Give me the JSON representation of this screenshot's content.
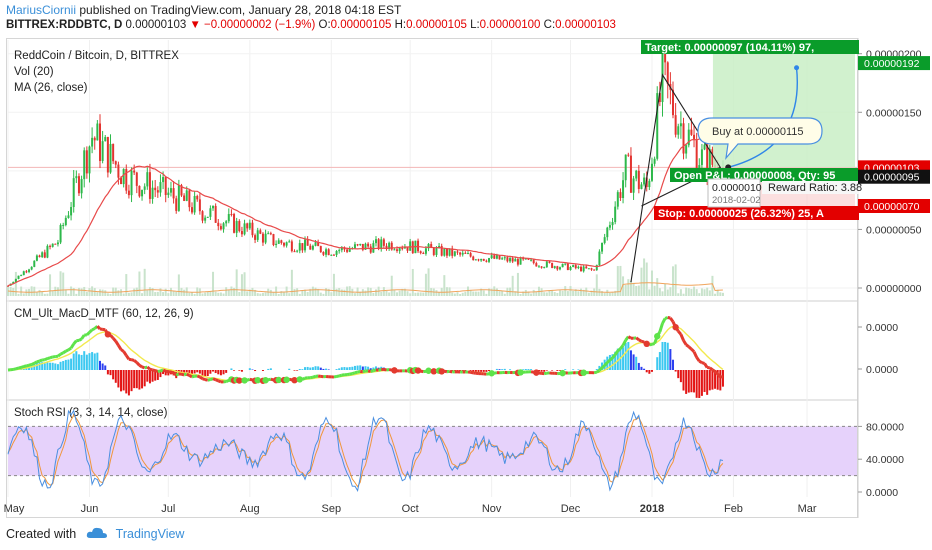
{
  "header": {
    "author": "MariusCiornii",
    "published_text": " published on TradingView.com, January 28, 2018 04:18 EST",
    "symbol": "BITTREX:RDDBTC, D",
    "price": "0.00000103",
    "change": "▼ −0.00000002 (−1.9%)",
    "open_label": "O:",
    "open": "0.00000105",
    "high_label": "H:",
    "high": "0.00000105",
    "low_label": "L:",
    "low": "0.00000100",
    "close_label": "C:",
    "close": "0.00000103"
  },
  "main_pane": {
    "title": "ReddCoin / Bitcoin, D, BITTREX",
    "vol_label": "Vol (20)",
    "ma_label": "MA (26, close)",
    "y_ticks": [
      "0.00000200",
      "0.00000150",
      "0.00000100",
      "0.00000050",
      "0.00000000"
    ],
    "price_tags": [
      {
        "value": "0.00000192",
        "color": "#0a9c2a",
        "y": 1.92e-06
      },
      {
        "value": "0.00000103",
        "color": "#e30000",
        "y": 1.03e-06
      },
      {
        "value": "0.00000095",
        "color": "#111111",
        "y": 9.5e-07
      },
      {
        "value": "0.00000070",
        "color": "#e30000",
        "y": 7e-07
      }
    ],
    "target_label": "Target: 0.00000097 (104.11%) 97,",
    "open_pl_label": "Open P&L: 0.00000008, Qty: 95",
    "reward_label": "Reward Ratio: 3.88",
    "stop_label": "Stop: 0.00000025 (26.32%) 25, A",
    "buy_callout": "Buy at 0.00000115",
    "cursor_price": "0.0000010",
    "cursor_date": "2018-02-02"
  },
  "macd_pane": {
    "title": "CM_Ult_MacD_MTF (60, 12, 26, 9)",
    "y_ticks": [
      "0.0000",
      "0.0000"
    ]
  },
  "rsi_pane": {
    "title": "Stoch RSI (3, 3, 14, 14, close)",
    "y_ticks": [
      "80.0000",
      "40.0000",
      "0.0000"
    ]
  },
  "x_axis": {
    "labels": [
      "May",
      "Jun",
      "Jul",
      "Aug",
      "Sep",
      "Oct",
      "Nov",
      "Dec",
      "2018",
      "Feb",
      "Mar"
    ]
  },
  "footer": {
    "created_with": "Created with",
    "brand": "TradingView"
  },
  "colors": {
    "up": "#2db84a",
    "down": "#e3332f",
    "ma": "#e84a4a",
    "volume": "#c9e3cc",
    "macd_up": "#5de34a",
    "macd_down": "#e33a2f",
    "signal": "#f2e94e",
    "hist_up": "#3cc8f0",
    "hist_down": "#e31515",
    "hist_blue": "#2b3ff0",
    "rsi_k": "#4a8fe0",
    "rsi_d": "#f0963c",
    "rsi_band": "#e6d2fb"
  },
  "chart_data": [
    {
      "type": "candlestick",
      "title": "ReddCoin / Bitcoin, D, BITTREX",
      "x_range": [
        "2017-05-01",
        "2018-03-20"
      ],
      "ylim": [
        0,
        2.1e-06
      ],
      "key_points": [
        {
          "date": "2017-05-01",
          "close": 2e-08
        },
        {
          "date": "2017-05-20",
          "close": 4e-07
        },
        {
          "date": "2017-06-02",
          "close": 1.3e-06
        },
        {
          "date": "2017-06-15",
          "close": 9.5e-07
        },
        {
          "date": "2017-07-01",
          "close": 8e-07
        },
        {
          "date": "2017-07-20",
          "close": 6e-07
        },
        {
          "date": "2017-08-10",
          "close": 4e-07
        },
        {
          "date": "2017-09-01",
          "close": 3.2e-07
        },
        {
          "date": "2017-09-25",
          "close": 3.8e-07
        },
        {
          "date": "2017-10-20",
          "close": 2.8e-07
        },
        {
          "date": "2017-11-15",
          "close": 2.2e-07
        },
        {
          "date": "2017-12-10",
          "close": 1.5e-07
        },
        {
          "date": "2017-12-22",
          "close": 1e-06
        },
        {
          "date": "2017-12-30",
          "close": 8.5e-07
        },
        {
          "date": "2018-01-05",
          "close": 1.75e-06
        },
        {
          "date": "2018-01-12",
          "close": 1.4e-06
        },
        {
          "date": "2018-01-20",
          "close": 1.1e-06
        },
        {
          "date": "2018-01-28",
          "close": 1.03e-06
        }
      ],
      "last_open": 1.05e-06,
      "last_high": 1.05e-06,
      "last_low": 1e-06,
      "last_close": 1.03e-06
    },
    {
      "type": "line",
      "title": "CM_Ult_MacD_MTF (60, 12, 26, 9)",
      "series": [
        {
          "values": []
        }
      ]
    },
    {
      "type": "line",
      "title": "Stoch RSI (3, 3, 14, 14, close)",
      "ylim": [
        0,
        100
      ],
      "bands": [
        20,
        80
      ]
    }
  ]
}
